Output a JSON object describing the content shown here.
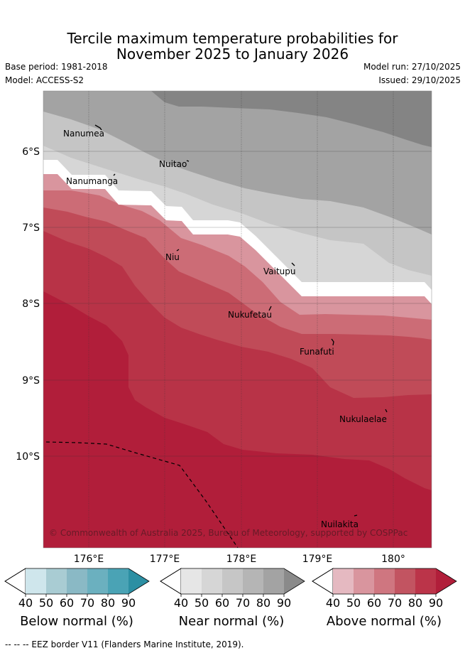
{
  "header": {
    "title_line1": "Tercile maximum temperature probabilities for",
    "title_line2": "November 2025 to January 2026",
    "base_period": "Base period: 1981-2018",
    "model": "Model: ACCESS-S2",
    "model_run": "Model run: 27/10/2025",
    "issued": "Issued: 29/10/2025"
  },
  "map": {
    "lat_labels": [
      "6°S",
      "7°S",
      "8°S",
      "9°S",
      "10°S"
    ],
    "lon_labels": [
      "176°E",
      "177°E",
      "178°E",
      "179°E",
      "180°"
    ],
    "places": [
      "Nanumea",
      "Nuitao",
      "Nanumanga",
      "Niu",
      "Vaitupu",
      "Nukufetau",
      "Funafuti",
      "Nukulaelae",
      "Nuilakita"
    ],
    "copyright": "© Commonwealth of Australia 2025, Bureau of Meteorology, supported by COSPPac"
  },
  "colorbars": [
    {
      "title": "Below normal (%)",
      "ticks": [
        "40",
        "50",
        "60",
        "70",
        "80",
        "90"
      ],
      "colors": [
        "#ffffff",
        "#cfe6ec",
        "#a9ccd3",
        "#8ab9c5",
        "#6bb0bf",
        "#4aa3b5",
        "#2c8fa3"
      ]
    },
    {
      "title": "Near normal (%)",
      "ticks": [
        "40",
        "50",
        "60",
        "70",
        "80",
        "90"
      ],
      "colors": [
        "#ffffff",
        "#e6e6e6",
        "#d6d6d6",
        "#c6c6c6",
        "#b5b5b5",
        "#a3a3a3",
        "#8a8a8a"
      ]
    },
    {
      "title": "Above normal (%)",
      "ticks": [
        "40",
        "50",
        "60",
        "70",
        "80",
        "90"
      ],
      "colors": [
        "#ffffff",
        "#e5b9c1",
        "#d9959e",
        "#cf7680",
        "#c25461",
        "#bb3449",
        "#b11e3a"
      ]
    }
  ],
  "footer": {
    "legend": "-- -- -- EEZ border V11 (Flanders Marine Institute, 2019)."
  },
  "colors": {
    "gray1": "#848484",
    "gray2": "#a3a3a3",
    "gray3": "#c5c5c5",
    "gray4": "#d6d6d6",
    "red1": "#d9959e",
    "red2": "#cc6c76",
    "red3": "#c04b58",
    "red4": "#b83347",
    "red5": "#b11e3a"
  }
}
